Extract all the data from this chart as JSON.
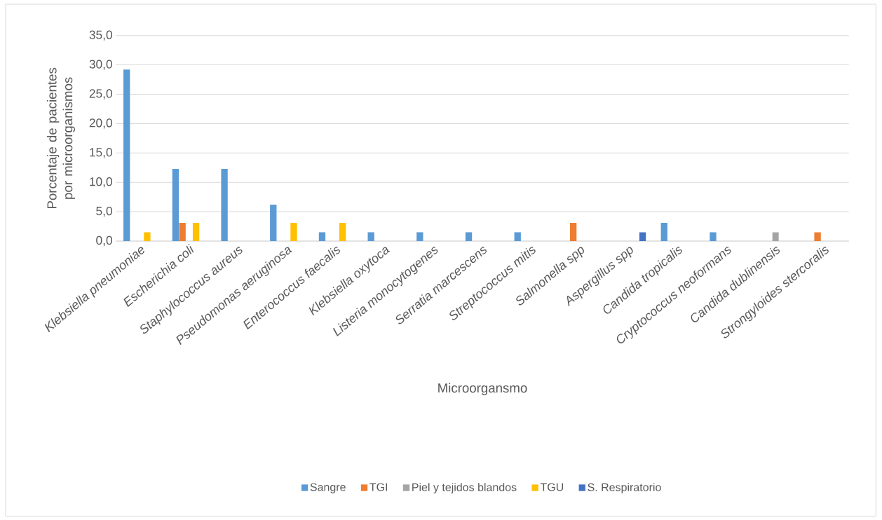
{
  "chart_data": {
    "type": "bar",
    "xlabel": "Microorgansmo",
    "ylabel": "Porcentaje de pacientes por microorganismos",
    "categories": [
      "Klebsiella pneumoniae",
      "Escherichia coli",
      "Staphylococcus aureus",
      "Pseudomonas aeruginosa",
      "Enterococcus faecalis",
      "Klebsiella oxytoca",
      "Listeria monocytogenes",
      "Serratia marcescens",
      "Streptococcus mitis",
      "Salmonella spp",
      "Aspergillus spp",
      "Candida tropicalis",
      "Cryptococcus neoformans",
      "Candida dublinensis",
      "Strongyloides stercoralis"
    ],
    "series": [
      {
        "name": "Sangre",
        "color": "#5b9bd5",
        "values": [
          29.2,
          12.3,
          12.3,
          6.2,
          1.5,
          1.5,
          1.5,
          1.5,
          1.5,
          null,
          null,
          3.1,
          1.5,
          null,
          null
        ]
      },
      {
        "name": "TGI",
        "color": "#ed7d31",
        "values": [
          null,
          3.1,
          null,
          null,
          null,
          null,
          null,
          null,
          null,
          3.1,
          null,
          null,
          null,
          null,
          1.5
        ]
      },
      {
        "name": "Piel y tejidos blandos",
        "color": "#a5a5a5",
        "values": [
          null,
          null,
          null,
          null,
          null,
          null,
          null,
          null,
          null,
          null,
          null,
          null,
          null,
          1.5,
          null
        ]
      },
      {
        "name": "TGU",
        "color": "#ffc000",
        "values": [
          1.5,
          3.1,
          null,
          3.1,
          3.1,
          null,
          null,
          null,
          null,
          null,
          null,
          null,
          null,
          null,
          null
        ]
      },
      {
        "name": "S. Respiratorio",
        "color": "#4472c4",
        "values": [
          null,
          null,
          null,
          null,
          null,
          null,
          null,
          null,
          null,
          null,
          1.5,
          null,
          null,
          null,
          null
        ]
      }
    ],
    "ylim": [
      0,
      35
    ],
    "yticks": [
      {
        "value": 0,
        "label": "0,0"
      },
      {
        "value": 5,
        "label": "5,0"
      },
      {
        "value": 10,
        "label": "10,0"
      },
      {
        "value": 15,
        "label": "15,0"
      },
      {
        "value": 20,
        "label": "20,0"
      },
      {
        "value": 25,
        "label": "25,0"
      },
      {
        "value": 30,
        "label": "30,0"
      },
      {
        "value": 35,
        "label": "35,0"
      }
    ],
    "grid": "y",
    "legend": "bottom"
  }
}
